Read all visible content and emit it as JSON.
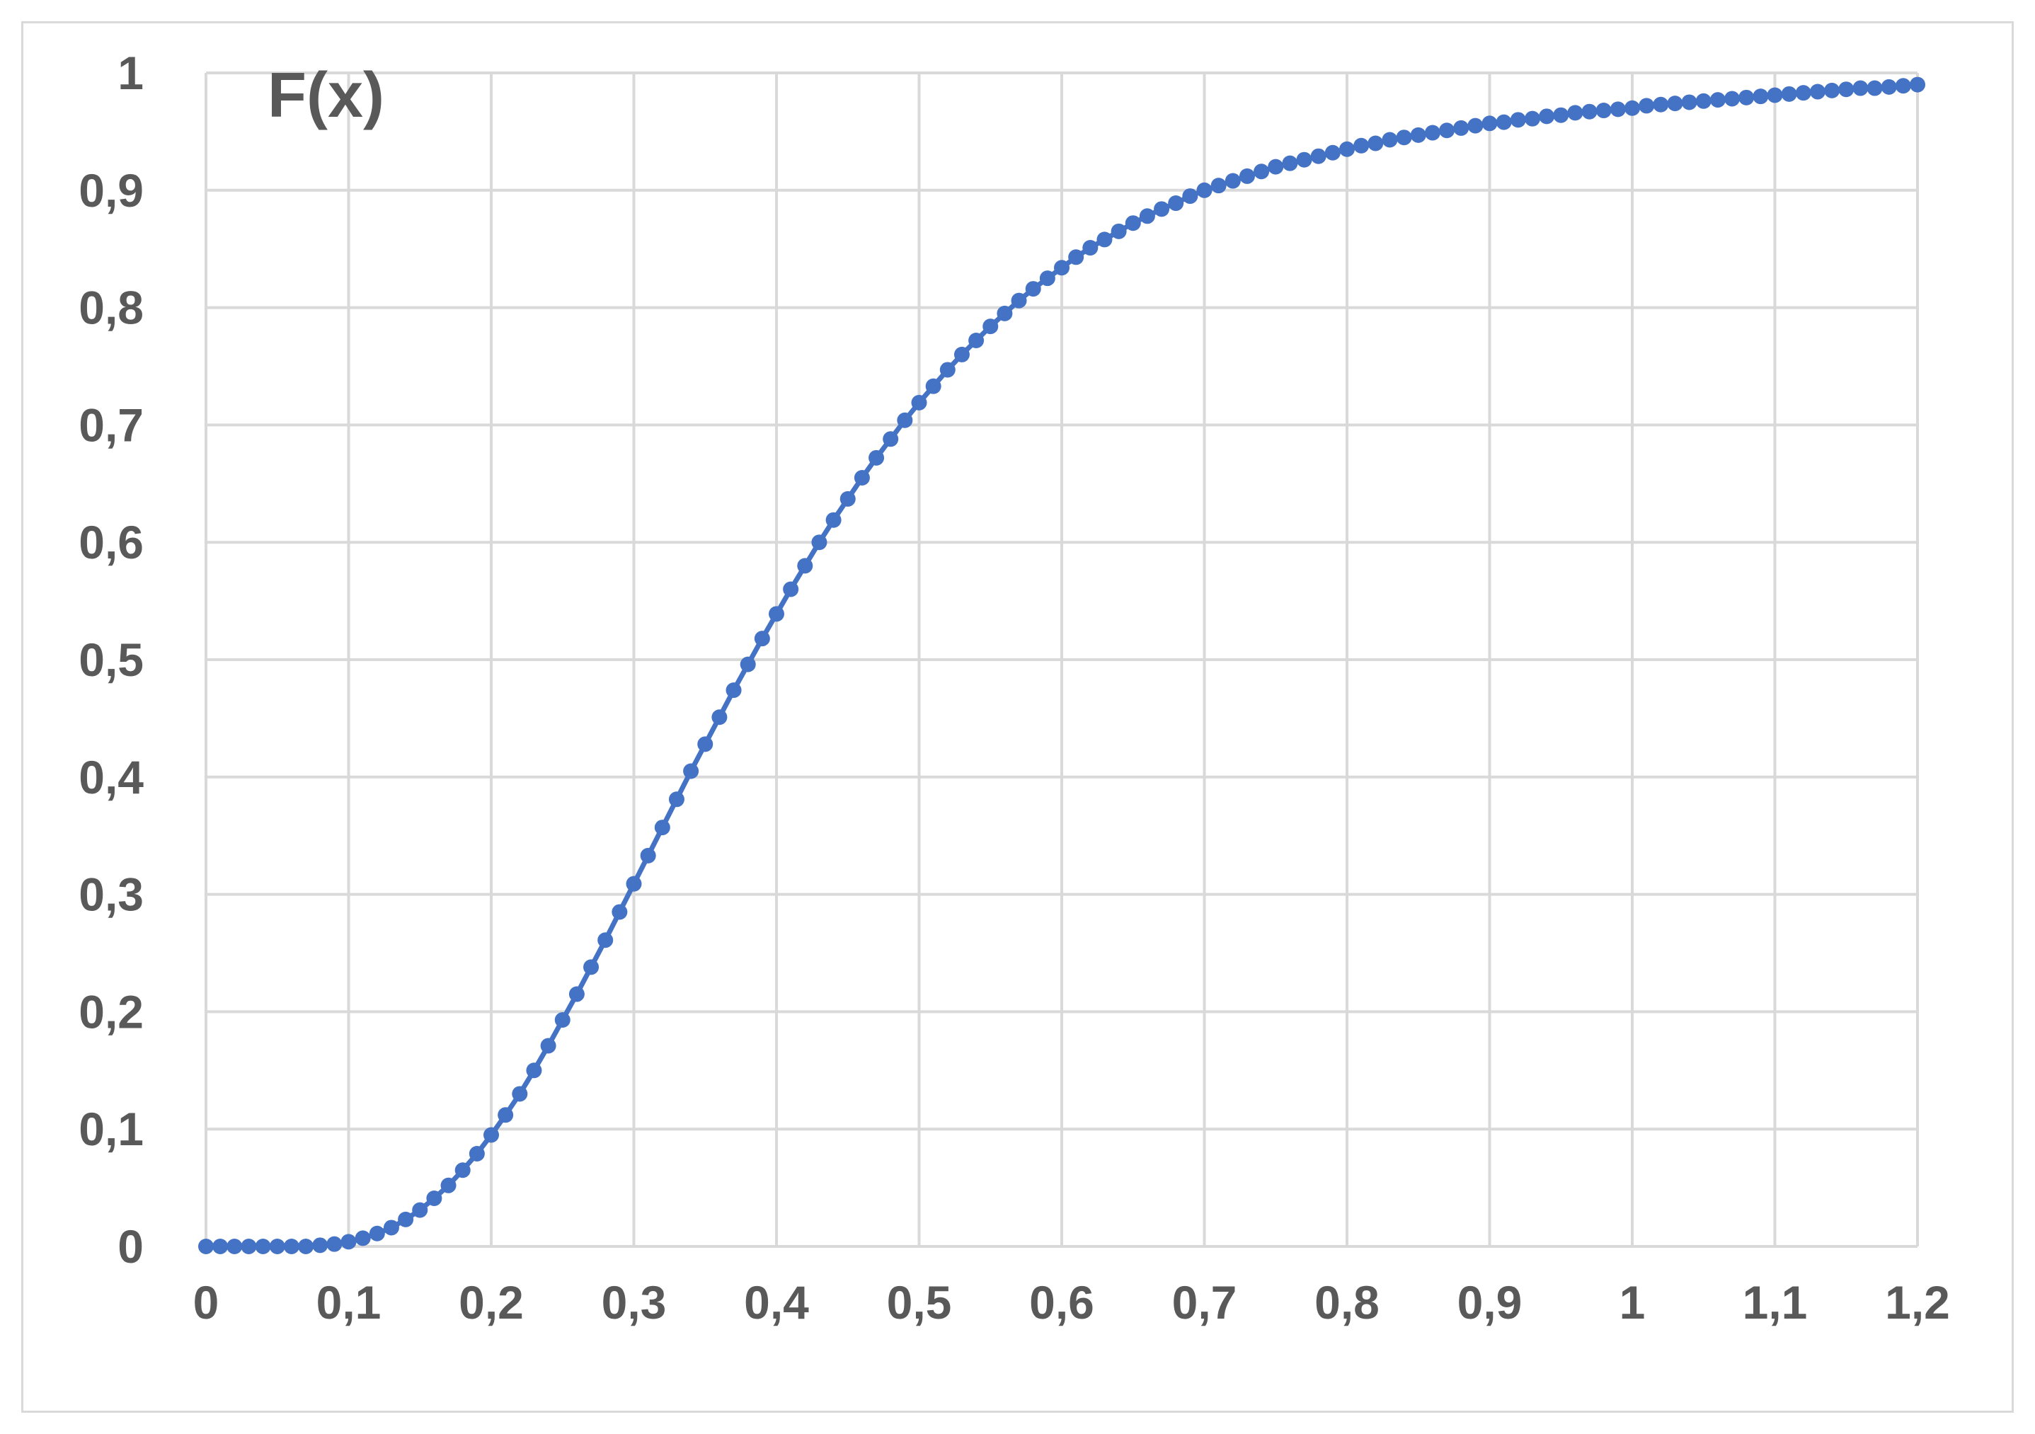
{
  "chart_data": {
    "type": "scatter",
    "line_connected": true,
    "title": "",
    "ylabel": "F(x)",
    "xlabel": "",
    "xlim": [
      0,
      1.2
    ],
    "ylim": [
      0,
      1
    ],
    "x_ticks": [
      0,
      0.1,
      0.2,
      0.3,
      0.4,
      0.5,
      0.6,
      0.7,
      0.8,
      0.9,
      1,
      1.1,
      1.2
    ],
    "x_tick_labels": [
      "0",
      "0,1",
      "0,2",
      "0,3",
      "0,4",
      "0,5",
      "0,6",
      "0,7",
      "0,8",
      "0,9",
      "1",
      "1,1",
      "1,2"
    ],
    "y_ticks": [
      0,
      0.1,
      0.2,
      0.3,
      0.4,
      0.5,
      0.6,
      0.7,
      0.8,
      0.9,
      1
    ],
    "y_tick_labels": [
      "0",
      "0,1",
      "0,2",
      "0,3",
      "0,4",
      "0,5",
      "0,6",
      "0,7",
      "0,8",
      "0,9",
      "1"
    ],
    "grid": true,
    "legend": "none",
    "colors": {
      "series": "#4472c4",
      "grid": "#d9d9d9",
      "text": "#595959"
    },
    "series": [
      {
        "x": [
          0,
          0.01,
          0.02,
          0.03,
          0.04,
          0.05,
          0.06,
          0.07,
          0.08,
          0.09,
          0.1,
          0.11,
          0.12,
          0.13,
          0.14,
          0.15,
          0.16,
          0.17,
          0.18,
          0.19,
          0.2,
          0.21,
          0.22,
          0.23,
          0.24,
          0.25,
          0.26,
          0.27,
          0.28,
          0.29,
          0.3,
          0.31,
          0.32,
          0.33,
          0.34,
          0.35,
          0.36,
          0.37,
          0.38,
          0.39,
          0.4,
          0.41,
          0.42,
          0.43,
          0.44,
          0.45,
          0.46,
          0.47,
          0.48,
          0.49,
          0.5,
          0.51,
          0.52,
          0.53,
          0.54,
          0.55,
          0.56,
          0.57,
          0.58,
          0.59,
          0.6,
          0.61,
          0.62,
          0.63,
          0.64,
          0.65,
          0.66,
          0.67,
          0.68,
          0.69,
          0.7,
          0.71,
          0.72,
          0.73,
          0.74,
          0.75,
          0.76,
          0.77,
          0.78,
          0.79,
          0.8,
          0.81,
          0.82,
          0.83,
          0.84,
          0.85,
          0.86,
          0.87,
          0.88,
          0.89,
          0.9,
          0.91,
          0.92,
          0.93,
          0.94,
          0.95,
          0.96,
          0.97,
          0.98,
          0.99,
          1,
          1.01,
          1.02,
          1.03,
          1.04,
          1.05,
          1.06,
          1.07,
          1.08,
          1.09,
          1.1,
          1.11,
          1.12,
          1.13,
          1.14,
          1.15,
          1.16,
          1.17,
          1.18,
          1.19,
          1.2
        ],
        "y": [
          0,
          0,
          0,
          0,
          0,
          0,
          0,
          0,
          0.001,
          0.002,
          0.004,
          0.007,
          0.011,
          0.016,
          0.023,
          0.031,
          0.041,
          0.052,
          0.065,
          0.079,
          0.095,
          0.112,
          0.13,
          0.15,
          0.171,
          0.193,
          0.215,
          0.238,
          0.261,
          0.285,
          0.309,
          0.333,
          0.357,
          0.381,
          0.405,
          0.428,
          0.451,
          0.474,
          0.496,
          0.518,
          0.539,
          0.56,
          0.58,
          0.6,
          0.619,
          0.637,
          0.655,
          0.672,
          0.688,
          0.704,
          0.719,
          0.733,
          0.747,
          0.76,
          0.772,
          0.784,
          0.795,
          0.806,
          0.816,
          0.825,
          0.834,
          0.843,
          0.851,
          0.858,
          0.865,
          0.872,
          0.878,
          0.884,
          0.889,
          0.895,
          0.9,
          0.904,
          0.908,
          0.912,
          0.916,
          0.92,
          0.923,
          0.926,
          0.929,
          0.932,
          0.935,
          0.938,
          0.94,
          0.943,
          0.945,
          0.947,
          0.949,
          0.951,
          0.953,
          0.955,
          0.957,
          0.958,
          0.96,
          0.961,
          0.963,
          0.964,
          0.966,
          0.967,
          0.968,
          0.969,
          0.97,
          0.972,
          0.973,
          0.974,
          0.975,
          0.976,
          0.977,
          0.978,
          0.979,
          0.98,
          0.981,
          0.982,
          0.983,
          0.984,
          0.985,
          0.986,
          0.987,
          0.987,
          0.988,
          0.989,
          0.99
        ]
      }
    ]
  }
}
